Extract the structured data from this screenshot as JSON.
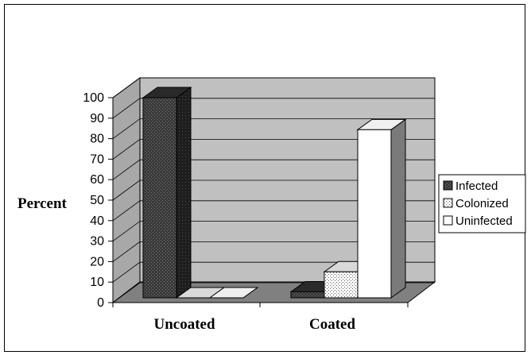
{
  "chart_data": {
    "type": "bar",
    "ylabel": "Percent",
    "xlabel": "",
    "ylim": [
      0,
      100
    ],
    "yticks": [
      0,
      10,
      20,
      30,
      40,
      50,
      60,
      70,
      80,
      90,
      100
    ],
    "categories": [
      "Uncoated",
      "Coated"
    ],
    "series": [
      {
        "name": "Infected",
        "values": [
          100,
          3
        ],
        "color": "#3a3a3a",
        "pattern": "dark-crosshatch"
      },
      {
        "name": "Colonized",
        "values": [
          0,
          13
        ],
        "color": "#e6e6e6",
        "pattern": "dots"
      },
      {
        "name": "Uninfected",
        "values": [
          0,
          84
        ],
        "color": "#ffffff",
        "pattern": "none"
      }
    ],
    "grid": true,
    "style": "3d",
    "wall_color": "#c0c0c0",
    "floor_color": "#808080",
    "legend_position": "right"
  }
}
